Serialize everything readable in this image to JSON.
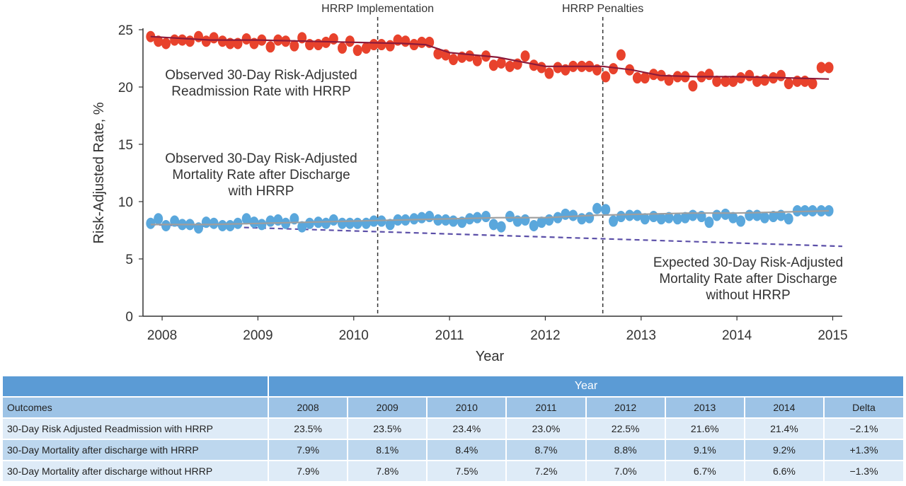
{
  "chart_data": {
    "type": "scatter",
    "ylabel": "Risk-Adjusted Rate, %",
    "xlabel": "Year",
    "xlim": [
      2007.8,
      2015.1
    ],
    "ylim": [
      0,
      25
    ],
    "x_ticks": [
      "2008",
      "2009",
      "2010",
      "2011",
      "2012",
      "2013",
      "2014",
      "2015"
    ],
    "y_ticks": [
      "0",
      "5",
      "10",
      "15",
      "20",
      "25"
    ],
    "grid": false,
    "events": [
      {
        "label": "HRRP Implementation",
        "x": 2010.25
      },
      {
        "label": "HRRP Penalties",
        "x": 2012.6
      }
    ],
    "annotations": [
      {
        "lines": [
          "Observed 30-Day Risk-Adjusted",
          "Readmission Rate with HRRP"
        ]
      },
      {
        "lines": [
          "Observed 30-Day Risk-Adjusted",
          "Mortality Rate after Discharge",
          "with HRRP"
        ]
      },
      {
        "lines": [
          "Expected 30-Day Risk-Adjusted",
          "Mortality Rate after Discharge",
          "without HRRP"
        ]
      }
    ],
    "series": [
      {
        "color": "#e8422c",
        "trend_color": "#8b1a3a",
        "x": [
          2007.88,
          2007.96,
          2008.04,
          2008.13,
          2008.21,
          2008.29,
          2008.38,
          2008.46,
          2008.54,
          2008.63,
          2008.71,
          2008.79,
          2008.88,
          2008.96,
          2009.04,
          2009.13,
          2009.21,
          2009.29,
          2009.38,
          2009.46,
          2009.54,
          2009.63,
          2009.71,
          2009.79,
          2009.88,
          2009.96,
          2010.04,
          2010.13,
          2010.21,
          2010.29,
          2010.38,
          2010.46,
          2010.54,
          2010.63,
          2010.71,
          2010.79,
          2010.88,
          2010.96,
          2011.04,
          2011.13,
          2011.21,
          2011.29,
          2011.38,
          2011.46,
          2011.54,
          2011.63,
          2011.71,
          2011.79,
          2011.88,
          2011.96,
          2012.04,
          2012.13,
          2012.21,
          2012.29,
          2012.38,
          2012.46,
          2012.54,
          2012.63,
          2012.71,
          2012.79,
          2012.88,
          2012.96,
          2013.04,
          2013.13,
          2013.21,
          2013.29,
          2013.38,
          2013.46,
          2013.54,
          2013.63,
          2013.71,
          2013.79,
          2013.88,
          2013.96,
          2014.04,
          2014.13,
          2014.21,
          2014.29,
          2014.38,
          2014.46,
          2014.54,
          2014.63,
          2014.71,
          2014.79,
          2014.88,
          2014.96
        ],
        "y": [
          24.4,
          24.0,
          23.8,
          24.1,
          24.1,
          24.0,
          24.4,
          24.0,
          24.3,
          24.0,
          23.8,
          23.8,
          24.2,
          23.8,
          24.1,
          23.5,
          24.1,
          24.0,
          23.6,
          24.3,
          23.7,
          23.7,
          23.9,
          24.2,
          23.4,
          24.0,
          23.2,
          23.4,
          23.7,
          23.7,
          23.6,
          24.1,
          24.0,
          23.7,
          23.9,
          23.9,
          22.9,
          22.8,
          22.4,
          22.6,
          22.7,
          22.3,
          22.7,
          21.9,
          22.1,
          21.8,
          22.0,
          22.7,
          21.9,
          21.7,
          21.2,
          21.7,
          21.5,
          21.8,
          21.8,
          21.8,
          21.5,
          20.9,
          21.6,
          22.8,
          21.5,
          20.8,
          20.8,
          21.1,
          21.0,
          20.6,
          20.9,
          20.9,
          20.1,
          20.9,
          21.1,
          20.5,
          20.5,
          20.5,
          20.8,
          21.0,
          20.5,
          20.6,
          20.8,
          21.0,
          20.3,
          20.5,
          20.5,
          20.3,
          21.7,
          21.7
        ],
        "trend_x": [
          2007.88,
          2008.5,
          2009.0,
          2009.5,
          2010.0,
          2010.5,
          2010.75,
          2011.0,
          2011.5,
          2012.0,
          2012.3,
          2012.6,
          2012.9,
          2013.2,
          2013.6,
          2014.0,
          2014.5,
          2014.96
        ],
        "trend_y": [
          24.4,
          24.1,
          24.1,
          24.0,
          23.9,
          23.8,
          23.7,
          23.0,
          22.6,
          21.8,
          21.8,
          21.8,
          21.5,
          21.0,
          20.9,
          20.9,
          20.8,
          20.7
        ]
      },
      {
        "color": "#5aa7dc",
        "trend_color": "#9e9e9e",
        "x": [
          2007.88,
          2007.96,
          2008.04,
          2008.13,
          2008.21,
          2008.29,
          2008.38,
          2008.46,
          2008.54,
          2008.63,
          2008.71,
          2008.79,
          2008.88,
          2008.96,
          2009.04,
          2009.13,
          2009.21,
          2009.29,
          2009.38,
          2009.46,
          2009.54,
          2009.63,
          2009.71,
          2009.79,
          2009.88,
          2009.96,
          2010.04,
          2010.13,
          2010.21,
          2010.29,
          2010.38,
          2010.46,
          2010.54,
          2010.63,
          2010.71,
          2010.79,
          2010.88,
          2010.96,
          2011.04,
          2011.13,
          2011.21,
          2011.29,
          2011.38,
          2011.46,
          2011.54,
          2011.63,
          2011.71,
          2011.79,
          2011.88,
          2011.96,
          2012.04,
          2012.13,
          2012.21,
          2012.29,
          2012.38,
          2012.46,
          2012.54,
          2012.63,
          2012.71,
          2012.79,
          2012.88,
          2012.96,
          2013.04,
          2013.13,
          2013.21,
          2013.29,
          2013.38,
          2013.46,
          2013.54,
          2013.63,
          2013.71,
          2013.79,
          2013.88,
          2013.96,
          2014.04,
          2014.13,
          2014.21,
          2014.29,
          2014.38,
          2014.46,
          2014.54,
          2014.63,
          2014.71,
          2014.79,
          2014.88,
          2014.96
        ],
        "y": [
          8.1,
          8.5,
          7.9,
          8.3,
          8.0,
          8.0,
          7.7,
          8.2,
          8.1,
          7.9,
          7.9,
          8.1,
          8.5,
          8.2,
          8.0,
          8.3,
          8.4,
          8.1,
          8.5,
          7.8,
          8.1,
          8.2,
          8.1,
          8.4,
          8.1,
          8.1,
          8.1,
          8.1,
          8.3,
          8.3,
          8.0,
          8.4,
          8.4,
          8.5,
          8.6,
          8.7,
          8.4,
          8.4,
          8.3,
          8.2,
          8.5,
          8.6,
          8.7,
          8.0,
          7.8,
          8.7,
          8.3,
          8.4,
          7.9,
          8.2,
          8.4,
          8.6,
          8.9,
          8.8,
          8.5,
          8.6,
          9.4,
          9.3,
          8.3,
          8.7,
          8.8,
          8.8,
          8.5,
          8.7,
          8.5,
          8.6,
          8.5,
          8.6,
          8.8,
          8.7,
          8.2,
          8.8,
          8.9,
          8.6,
          8.3,
          8.8,
          8.8,
          8.6,
          8.7,
          8.8,
          8.5,
          9.2,
          9.2,
          9.2,
          9.2,
          9.2
        ],
        "trend_x": [
          2007.88,
          2008.5,
          2009.0,
          2009.5,
          2010.0,
          2010.5,
          2011.0,
          2011.5,
          2012.0,
          2012.5,
          2013.0,
          2013.5,
          2014.0,
          2014.5,
          2014.96
        ],
        "trend_y": [
          8.0,
          8.0,
          8.1,
          8.2,
          8.3,
          8.4,
          8.5,
          8.6,
          8.6,
          8.8,
          8.9,
          9.0,
          9.0,
          9.1,
          9.2
        ]
      },
      {
        "color": "#5b4fa8",
        "style": "dashed",
        "x": [
          2007.88,
          2015.1
        ],
        "y": [
          8.0,
          6.1
        ]
      }
    ]
  },
  "table": {
    "year_header": "Year",
    "columns": [
      "Outcomes",
      "2008",
      "2009",
      "2010",
      "2011",
      "2012",
      "2013",
      "2014",
      "Delta"
    ],
    "rows": [
      [
        "30-Day Risk Adjusted Readmission with HRRP",
        "23.5%",
        "23.5%",
        "23.4%",
        "23.0%",
        "22.5%",
        "21.6%",
        "21.4%",
        "−2.1%"
      ],
      [
        "30-Day Mortality after discharge with HRRP",
        "7.9%",
        "8.1%",
        "8.4%",
        "8.7%",
        "8.8%",
        "9.1%",
        "9.2%",
        "+1.3%"
      ],
      [
        "30-Day Mortality after discharge without HRRP",
        "7.9%",
        "7.8%",
        "7.5%",
        "7.2%",
        "7.0%",
        "6.7%",
        "6.6%",
        "−1.3%"
      ]
    ]
  }
}
